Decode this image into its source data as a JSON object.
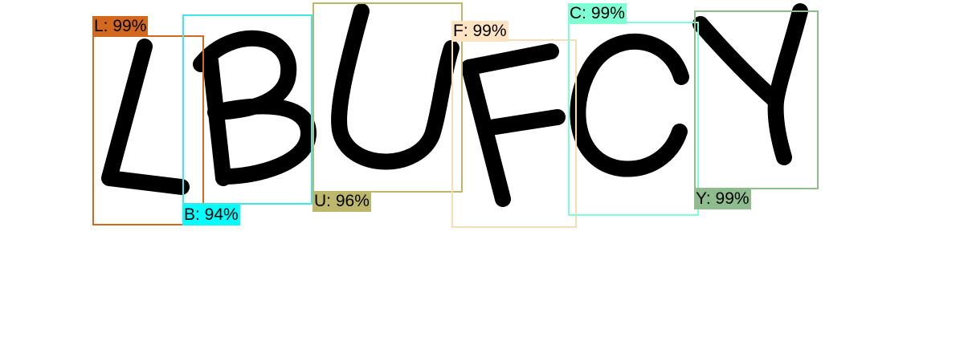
{
  "detections": [
    {
      "label": "L: 99%",
      "color": "#d2691e",
      "tag_color": "#d2691e"
    },
    {
      "label": "B: 94%",
      "color": "#3ee8e8",
      "tag_color": "#00ffff"
    },
    {
      "label": "U: 96%",
      "color": "#bdb76b",
      "tag_color": "#bdb76b"
    },
    {
      "label": "F: 99%",
      "color": "#f5deb3",
      "tag_color": "#ffe4c4"
    },
    {
      "label": "C: 99%",
      "color": "#7fffd4",
      "tag_color": "#7fffd4"
    },
    {
      "label": "Y: 99%",
      "color": "#8fbc8f",
      "tag_color": "#8fbc8f"
    }
  ]
}
